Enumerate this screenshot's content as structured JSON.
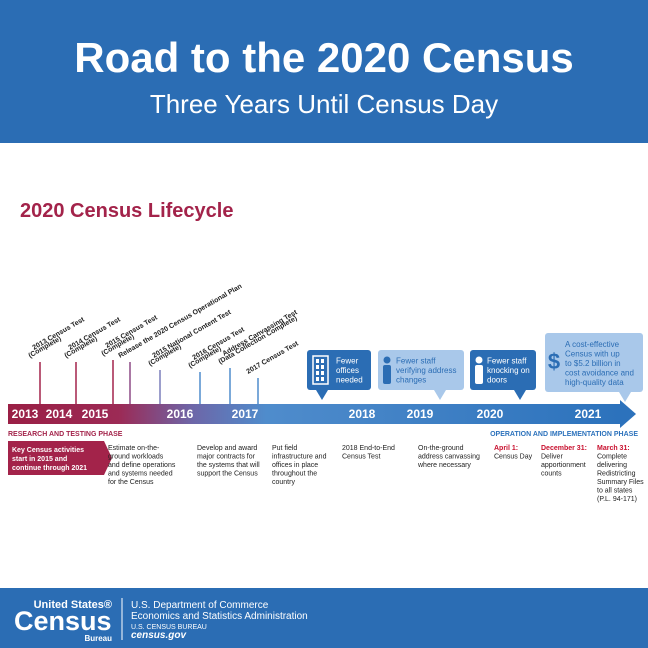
{
  "header": {
    "title": "Road to the 2020 Census",
    "subtitle": "Three Years Until Census Day"
  },
  "section_title": "2020 Census Lifecycle",
  "timeline": {
    "years": [
      "2013",
      "2014",
      "2015",
      "2016",
      "2017",
      "2018",
      "2019",
      "2020",
      "2021"
    ]
  },
  "milestones": [
    {
      "lines": [
        "2013 Census Test",
        "(Complete)"
      ]
    },
    {
      "lines": [
        "2014 Census Test",
        "(Complete)"
      ]
    },
    {
      "lines": [
        "2015 Census Test",
        "(Complete)"
      ]
    },
    {
      "lines": [
        "Release the 2020 Census Operational Plan"
      ]
    },
    {
      "lines": [
        "2015 National Content Test",
        "(Complete)"
      ]
    },
    {
      "lines": [
        "2016 Census Test",
        "(Complete)"
      ]
    },
    {
      "lines": [
        "Address Canvassing Test",
        "(Data Collection Complete)"
      ]
    },
    {
      "lines": [
        "2017 Census Test"
      ]
    }
  ],
  "phases": {
    "research": "RESEARCH AND TESTING PHASE",
    "operation": "OPERATION AND IMPLEMENTATION PHASE"
  },
  "key_note": {
    "lines": [
      "Key Census activities",
      "start in 2015 and",
      "continue through 2021"
    ]
  },
  "callouts": [
    {
      "lines": [
        "Fewer",
        "offices",
        "needed"
      ]
    },
    {
      "lines": [
        "Fewer staff",
        "verifying address",
        "changes"
      ]
    },
    {
      "lines": [
        "Fewer staff",
        "knocking on",
        "doors"
      ]
    },
    {
      "icon": "$",
      "lines": [
        "A cost-effective",
        "Census with up",
        "to $5.2 billion in",
        "cost avoidance and",
        "high-quality data"
      ]
    }
  ],
  "activities": [
    {
      "lines": [
        "Estimate on-the-",
        "ground workloads",
        "and define operations",
        "and systems needed",
        "for the Census"
      ]
    },
    {
      "lines": [
        "Develop and award",
        "major contracts for",
        "the systems that will",
        "support the Census"
      ]
    },
    {
      "lines": [
        "Put field",
        "infrastructure and",
        "offices in place",
        "throughout the",
        "country"
      ]
    },
    {
      "lines": [
        "2018 End-to-End",
        "Census Test"
      ]
    },
    {
      "lines": [
        "On-the-ground",
        "address canvassing",
        "where necessary"
      ]
    },
    {
      "date": "April 1:",
      "lines": [
        "Census Day"
      ]
    },
    {
      "date": "December 31:",
      "lines": [
        "Deliver",
        "apportionment",
        "counts"
      ]
    },
    {
      "date": "March 31:",
      "lines": [
        "Complete",
        "delivering",
        "Redistricting",
        "Summary Files",
        "to all states",
        "(P.L. 94-171)"
      ]
    }
  ],
  "footer": {
    "logo_top": "United States®",
    "logo_main": "Census",
    "logo_bottom": "Bureau",
    "lines": [
      "U.S. Department of Commerce",
      "Economics and Statistics Administration",
      "U.S. CENSUS BUREAU"
    ],
    "url": "census.gov"
  }
}
